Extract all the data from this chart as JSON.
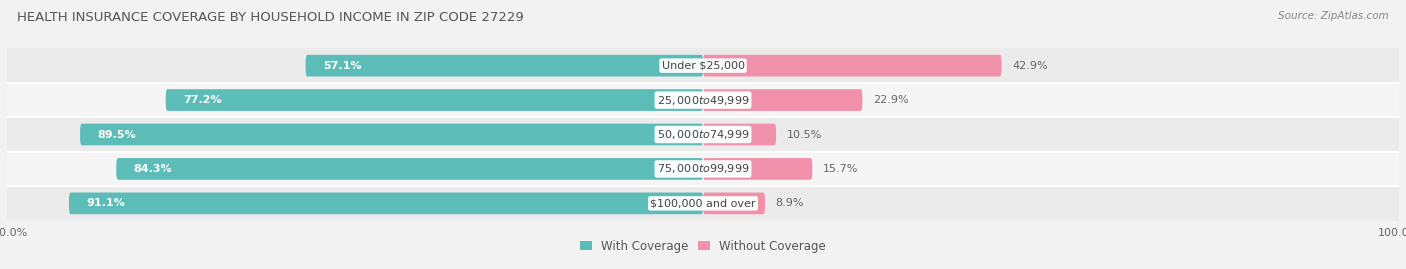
{
  "title": "HEALTH INSURANCE COVERAGE BY HOUSEHOLD INCOME IN ZIP CODE 27229",
  "source": "Source: ZipAtlas.com",
  "categories": [
    "Under $25,000",
    "$25,000 to $49,999",
    "$50,000 to $74,999",
    "$75,000 to $99,999",
    "$100,000 and over"
  ],
  "with_coverage": [
    57.1,
    77.2,
    89.5,
    84.3,
    91.1
  ],
  "without_coverage": [
    42.9,
    22.9,
    10.5,
    15.7,
    8.9
  ],
  "color_coverage": "#5bbcb8",
  "color_no_coverage": "#f090aa",
  "row_bg_colors": [
    "#ebebeb",
    "#f5f5f5",
    "#ebebeb",
    "#f5f5f5",
    "#ebebeb"
  ],
  "label_fontsize": 8.0,
  "title_fontsize": 9.5,
  "source_fontsize": 7.5,
  "legend_fontsize": 8.5,
  "axis_label_fontsize": 8.0,
  "bar_height": 0.62,
  "figsize": [
    14.06,
    2.69
  ],
  "dpi": 100,
  "bg_color": "#f2f2f2"
}
